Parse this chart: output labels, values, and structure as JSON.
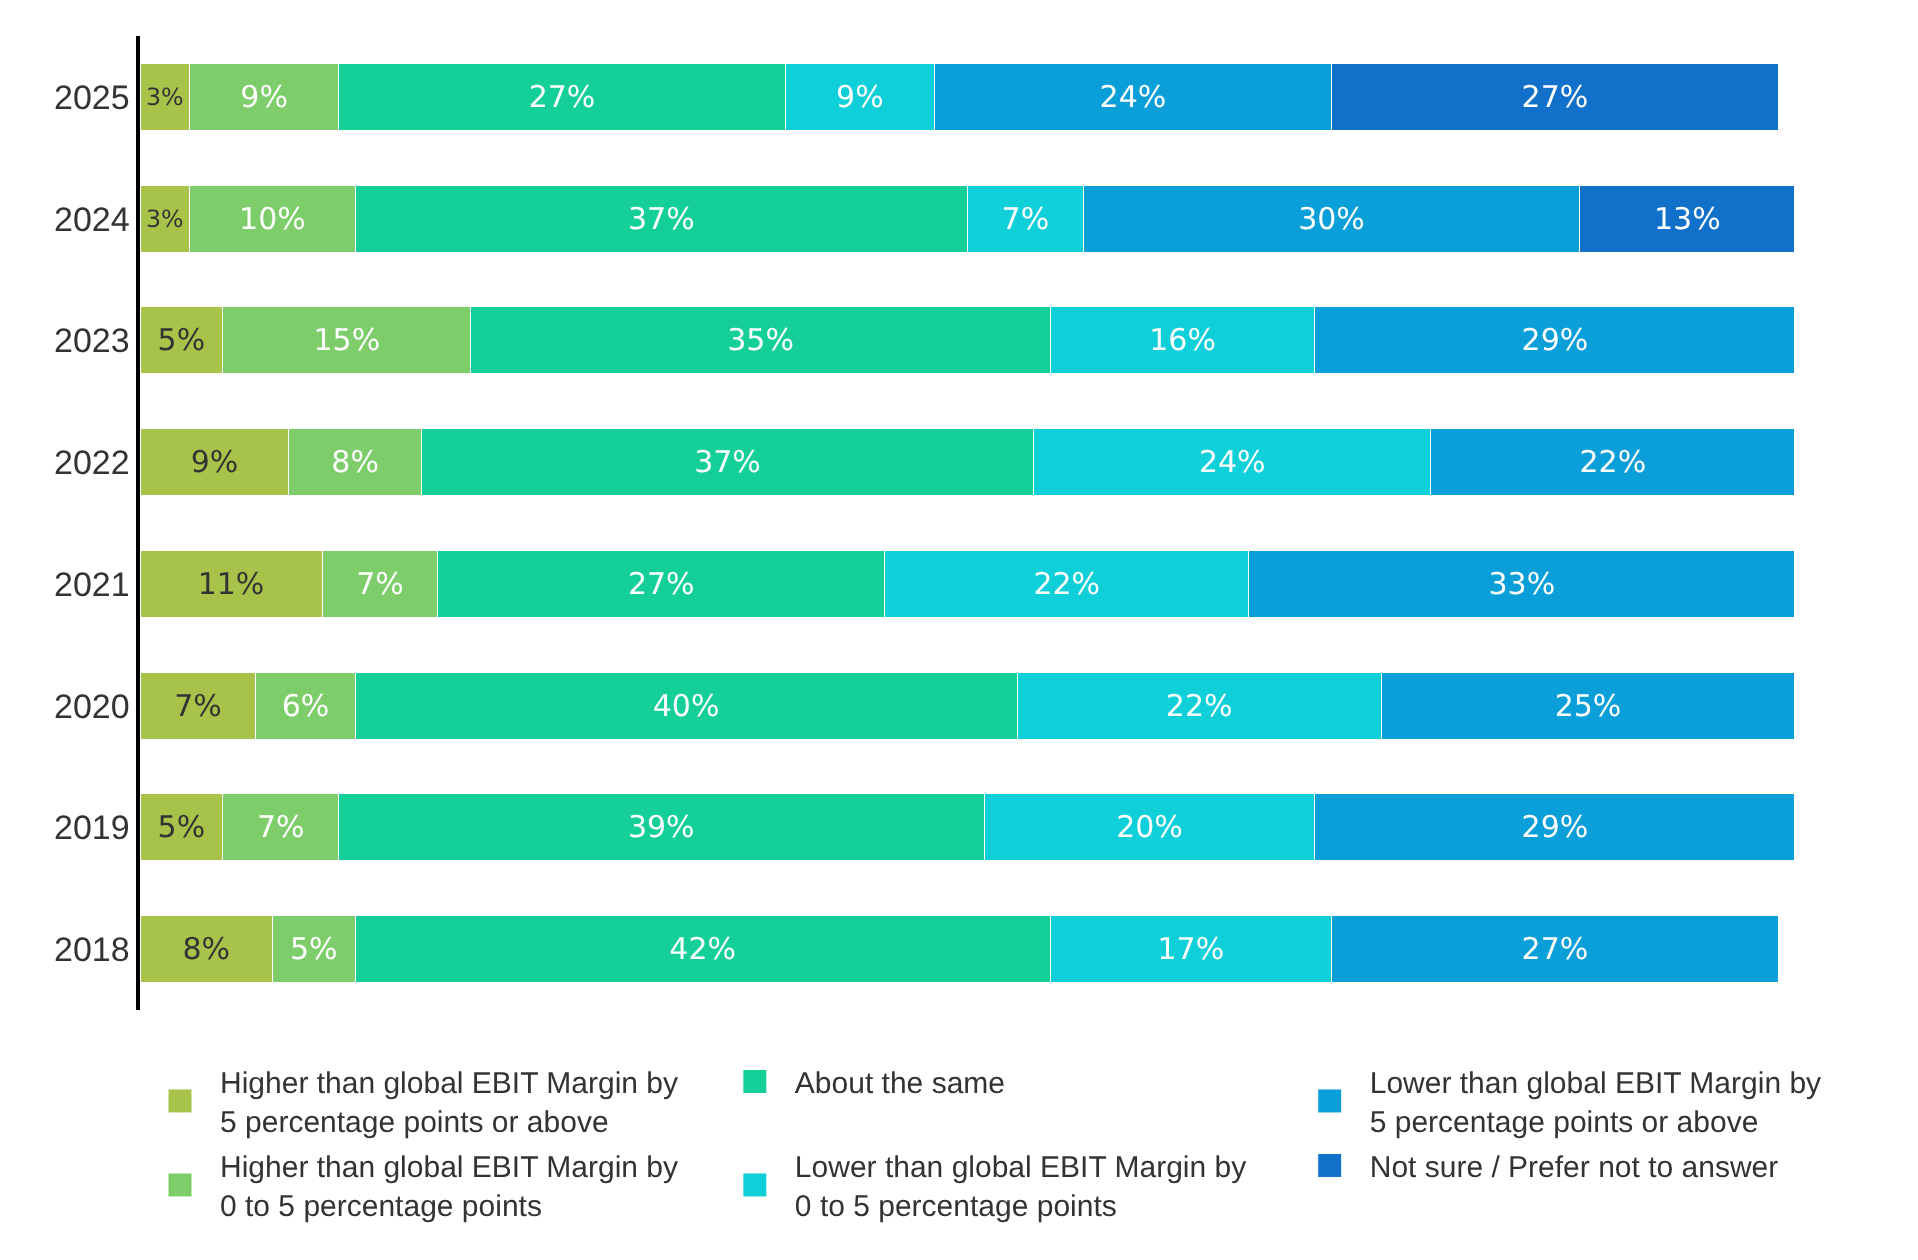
{
  "chart_data": {
    "type": "bar",
    "orientation": "horizontal",
    "stacked": true,
    "legend": "bottom",
    "tick_labels": "y",
    "grid": false,
    "categories": [
      "2025",
      "2024",
      "2023",
      "2022",
      "2021",
      "2020",
      "2019",
      "2018"
    ],
    "series": [
      {
        "name": "Higher than global EBIT Margin by 5 percentage points or above",
        "color": "#a8c34a",
        "values": [
          3,
          3,
          5,
          9,
          11,
          7,
          5,
          8
        ],
        "value_labels": [
          "3%",
          "3%",
          "5%",
          "9%",
          "11%",
          "7%",
          "5%",
          "8%"
        ]
      },
      {
        "name": "Higher than global EBIT Margin by 0 to 5 percentage points",
        "color": "#7dcd6a",
        "values": [
          9,
          10,
          15,
          8,
          7,
          6,
          7,
          5
        ],
        "value_labels": [
          "9%",
          "10%",
          "15%",
          "8%",
          "7%",
          "6%",
          "7%",
          "5%"
        ]
      },
      {
        "name": "About the same",
        "color": "#14cf98",
        "values": [
          27,
          37,
          35,
          37,
          27,
          40,
          39,
          42
        ],
        "value_labels": [
          "27%",
          "37%",
          "35%",
          "37%",
          "27%",
          "40%",
          "39%",
          "42%"
        ]
      },
      {
        "name": "Lower than global EBIT Margin by 0 to 5 percentage points",
        "color": "#0fcfd9",
        "values": [
          9,
          7,
          16,
          24,
          22,
          22,
          20,
          17
        ],
        "value_labels": [
          "9%",
          "7%",
          "16%",
          "24%",
          "22%",
          "22%",
          "20%",
          "17%"
        ]
      },
      {
        "name": "Lower than global EBIT Margin by 5 percentage points or above",
        "color": "#0a9fd9",
        "values": [
          24,
          30,
          29,
          22,
          33,
          25,
          29,
          27
        ],
        "value_labels": [
          "24%",
          "30%",
          "29%",
          "22%",
          "33%",
          "25%",
          "29%",
          "27%"
        ]
      },
      {
        "name": "Not sure / Prefer not to answer",
        "color": "#1170c9",
        "values": [
          27,
          13,
          null,
          null,
          null,
          null,
          null,
          null
        ],
        "value_labels": [
          "27%",
          "13%",
          null,
          null,
          null,
          null,
          null,
          null
        ]
      }
    ]
  }
}
